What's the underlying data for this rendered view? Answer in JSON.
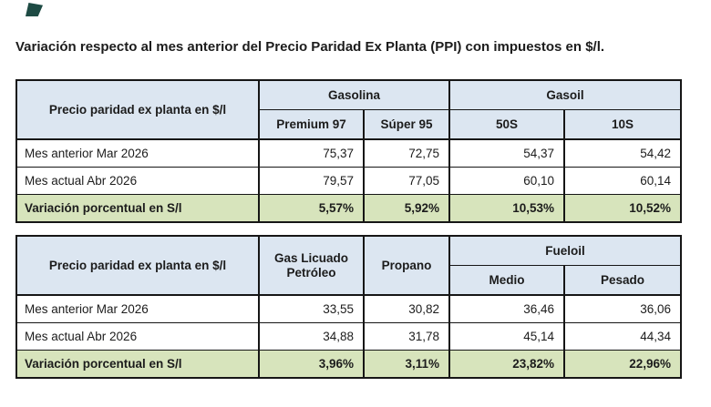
{
  "title": "Variación respecto al mes anterior del Precio Paridad Ex Planta (PPI) con impuestos en $/l.",
  "colors": {
    "header_bg": "#dce6f1",
    "highlight_bg": "#d7e4bc",
    "border": "#161616",
    "text": "#1c1c1c",
    "corner_mark": "#1e4b44"
  },
  "table1": {
    "corner_header": "Precio paridad ex planta en $/l",
    "groups": [
      {
        "label": "Gasolina",
        "cols": [
          "Premium 97",
          "Súper 95"
        ]
      },
      {
        "label": "Gasoil",
        "cols": [
          "50S",
          "10S"
        ]
      }
    ],
    "rows": [
      {
        "label": "Mes anterior Mar 2026",
        "values": [
          "75,37",
          "72,75",
          "54,37",
          "54,42"
        ]
      },
      {
        "label": "Mes actual Abr 2026",
        "values": [
          "79,57",
          "77,05",
          "60,10",
          "60,14"
        ]
      }
    ],
    "variation": {
      "label": "Variación porcentual en S/l",
      "values": [
        "5,57%",
        "5,92%",
        "10,53%",
        "10,52%"
      ]
    }
  },
  "table2": {
    "corner_header": "Precio paridad ex planta en $/l",
    "single_cols": [
      "Gas Licuado Petróleo",
      "Propano"
    ],
    "group": {
      "label": "Fueloil",
      "cols": [
        "Medio",
        "Pesado"
      ]
    },
    "rows": [
      {
        "label": "Mes anterior Mar 2026",
        "values": [
          "33,55",
          "30,82",
          "36,46",
          "36,06"
        ]
      },
      {
        "label": "Mes actual Abr 2026",
        "values": [
          "34,88",
          "31,78",
          "45,14",
          "44,34"
        ]
      }
    ],
    "variation": {
      "label": "Variación porcentual en S/l",
      "values": [
        "3,96%",
        "3,11%",
        "23,82%",
        "22,96%"
      ]
    }
  }
}
